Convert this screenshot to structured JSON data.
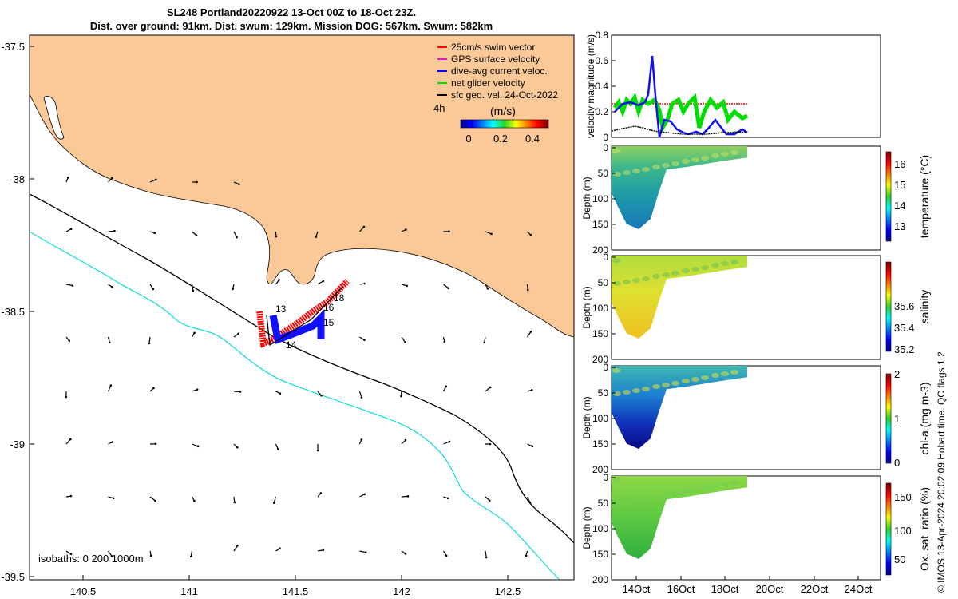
{
  "title": {
    "line1": "SL248 Portland20220922 13-Oct 00Z to 18-Oct 23Z.",
    "line2": "Dist. over ground: 91km. Dist. swum: 129km. Mission DOG: 567km. Swum: 582km"
  },
  "map": {
    "lon_ticks": [
      "140.5",
      "141",
      "141.5",
      "142",
      "142.5"
    ],
    "lat_ticks": [
      "-37.5",
      "-38",
      "-38.5",
      "-39",
      "-39.5"
    ],
    "legend": [
      {
        "label": "25cm/s swim vector",
        "color": "#ff0000"
      },
      {
        "label": "GPS surface velocity",
        "color": "#ff00ff"
      },
      {
        "label": "dive-avg current veloc.",
        "color": "#0000ff"
      },
      {
        "label": "net glider velocity",
        "color": "#00dd00"
      },
      {
        "label": "sfc geo. vel. 24-Oct-2022",
        "color": "#000000"
      }
    ],
    "time_label": "4h",
    "colorbar": {
      "label": "(m/s)",
      "ticks": [
        "0",
        "0.2",
        "0.4"
      ]
    },
    "day_labels": [
      "13",
      "14",
      "15",
      "16",
      "18"
    ],
    "isobaths_label": "isobaths: 0   200  1000m",
    "land_color": "#fbc997",
    "isobath_200_color": "#000000",
    "isobath_1000_color": "#22dddd"
  },
  "velocity_panel": {
    "ylabel": "velocity magnitude (m/s)",
    "yticks": [
      "0",
      "0.2",
      "0.4",
      "0.6",
      "0.8"
    ]
  },
  "panels": [
    {
      "label": "temperature (°C)",
      "ticks": [
        "13",
        "14",
        "15",
        "16"
      ]
    },
    {
      "label": "salinity",
      "ticks": [
        "35.2",
        "35.4",
        "35.6"
      ]
    },
    {
      "label": "chl-a (mg m-3)",
      "ticks": [
        "0",
        "1",
        "2"
      ]
    },
    {
      "label": "Ox. sat. ratio (%)",
      "ticks": [
        "50",
        "100",
        "150"
      ]
    }
  ],
  "depth_axis": {
    "label": "Depth (m)",
    "ticks": [
      "0",
      "50",
      "100",
      "150",
      "200"
    ]
  },
  "time_ticks": [
    "14Oct",
    "16Oct",
    "18Oct",
    "20Oct",
    "22Oct",
    "24Oct"
  ],
  "copyright": "© IMOS 13-Apr-2024 20:02:09 Hobart time. QC flags 1  2"
}
